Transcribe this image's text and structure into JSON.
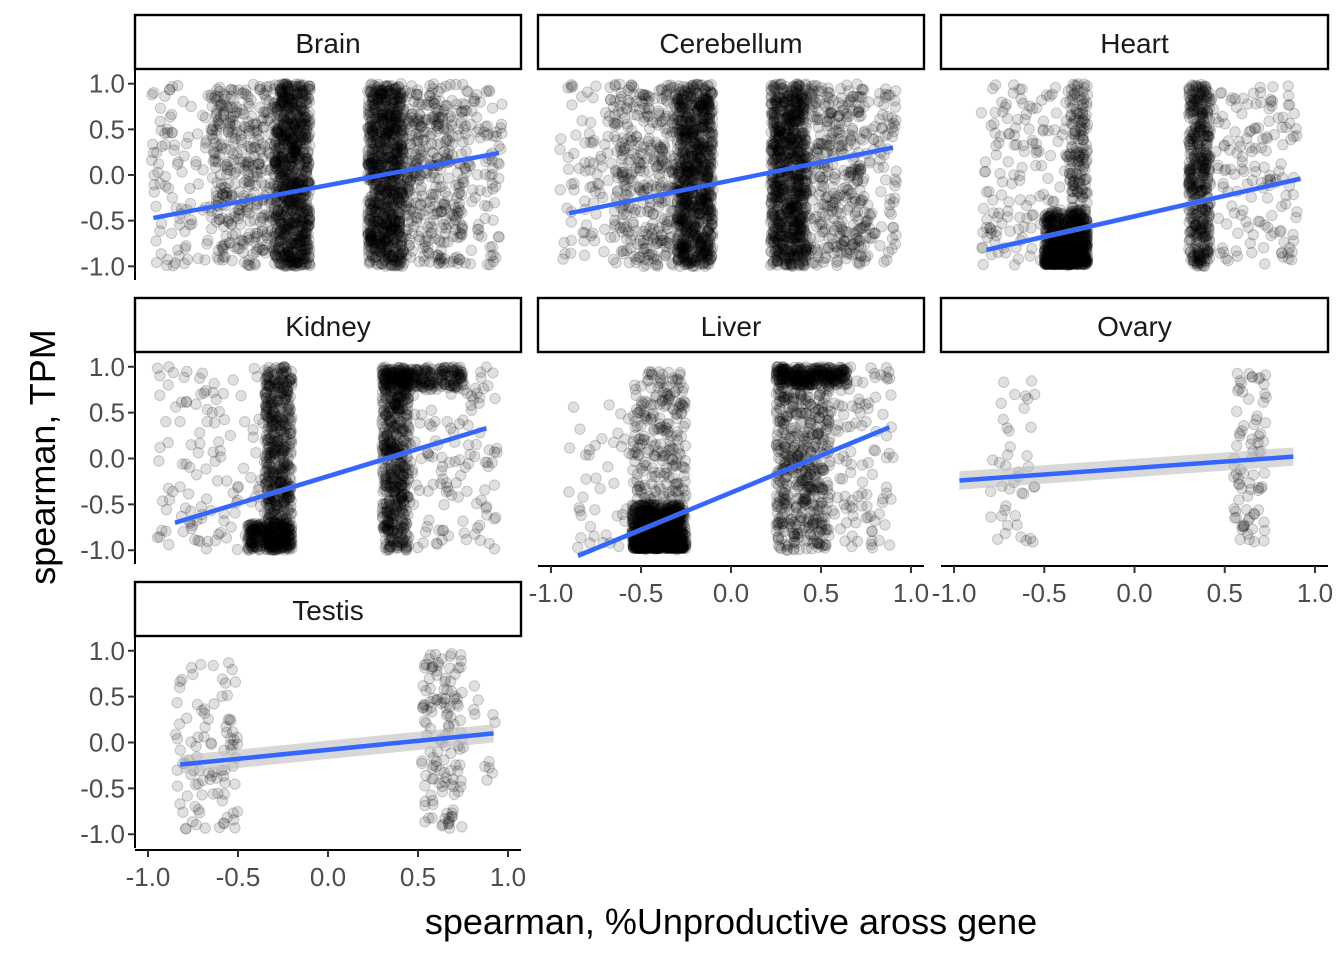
{
  "chart_data": {
    "type": "scatter",
    "subtype": "faceted scatter with linear fit and confidence band",
    "xlabel": "spearman, %Unproductive aross gene",
    "ylabel": "spearman, TPM",
    "xlim": [
      -1.05,
      1.05
    ],
    "ylim": [
      -1.15,
      1.15
    ],
    "x_ticks": [
      "-1.0",
      "-0.5",
      "0.0",
      "0.5",
      "1.0"
    ],
    "y_ticks": [
      "-1.0",
      "-0.5",
      "0.0",
      "0.5",
      "1.0"
    ],
    "x_tick_values": [
      -1.0,
      -0.5,
      0.0,
      0.5,
      1.0
    ],
    "y_tick_values": [
      -1.0,
      -0.5,
      0.0,
      0.5,
      1.0
    ],
    "grid": false,
    "point_color": "#000000",
    "point_alpha": 0.12,
    "fit_color": "#3366ff",
    "band_color": "#bebebe",
    "panels": [
      {
        "name": "Brain",
        "fit": {
          "x0": -0.97,
          "y0": -0.47,
          "x1": 0.95,
          "y1": 0.24,
          "se": 0.02
        },
        "clusters": [
          {
            "xr": [
              -0.3,
              -0.1
            ],
            "yr": [
              -1.0,
              1.0
            ],
            "n": 900,
            "dist": "uniform"
          },
          {
            "xr": [
              -0.65,
              -0.3
            ],
            "yr": [
              -1.0,
              1.0
            ],
            "n": 350,
            "dist": "uniform"
          },
          {
            "xr": [
              -0.98,
              -0.65
            ],
            "yr": [
              -1.0,
              1.0
            ],
            "n": 90,
            "dist": "uniform"
          },
          {
            "xr": [
              0.22,
              0.42
            ],
            "yr": [
              -1.0,
              1.0
            ],
            "n": 900,
            "dist": "uniform"
          },
          {
            "xr": [
              0.42,
              0.75
            ],
            "yr": [
              -1.0,
              1.0
            ],
            "n": 350,
            "dist": "uniform"
          },
          {
            "xr": [
              0.75,
              0.97
            ],
            "yr": [
              -1.0,
              1.0
            ],
            "n": 90,
            "dist": "uniform"
          }
        ]
      },
      {
        "name": "Cerebellum",
        "fit": {
          "x0": -0.9,
          "y0": -0.42,
          "x1": 0.9,
          "y1": 0.3,
          "se": 0.02
        },
        "clusters": [
          {
            "xr": [
              -0.3,
              -0.1
            ],
            "yr": [
              -1.0,
              1.0
            ],
            "n": 900,
            "dist": "uniform"
          },
          {
            "xr": [
              -0.65,
              -0.3
            ],
            "yr": [
              -1.0,
              1.0
            ],
            "n": 350,
            "dist": "uniform"
          },
          {
            "xr": [
              -0.95,
              -0.65
            ],
            "yr": [
              -1.0,
              1.0
            ],
            "n": 80,
            "dist": "uniform"
          },
          {
            "xr": [
              0.22,
              0.42
            ],
            "yr": [
              -1.0,
              1.0
            ],
            "n": 900,
            "dist": "uniform"
          },
          {
            "xr": [
              0.42,
              0.75
            ],
            "yr": [
              -1.0,
              1.0
            ],
            "n": 350,
            "dist": "uniform"
          },
          {
            "xr": [
              0.75,
              0.92
            ],
            "yr": [
              -1.0,
              1.0
            ],
            "n": 80,
            "dist": "uniform"
          }
        ]
      },
      {
        "name": "Heart",
        "fit": {
          "x0": -0.82,
          "y0": -0.82,
          "x1": 0.92,
          "y1": -0.04,
          "se": 0.03
        },
        "clusters": [
          {
            "xr": [
              -0.5,
              -0.26
            ],
            "yr": [
              -0.98,
              -0.4
            ],
            "n": 700,
            "dist": "low"
          },
          {
            "xr": [
              -0.36,
              -0.26
            ],
            "yr": [
              -1.0,
              1.0
            ],
            "n": 200,
            "dist": "uniform"
          },
          {
            "xr": [
              -0.85,
              -0.26
            ],
            "yr": [
              -1.0,
              1.0
            ],
            "n": 170,
            "dist": "uniform"
          },
          {
            "xr": [
              0.3,
              0.42
            ],
            "yr": [
              -1.0,
              1.0
            ],
            "n": 450,
            "dist": "uniform"
          },
          {
            "xr": [
              0.42,
              0.9
            ],
            "yr": [
              -1.0,
              1.0
            ],
            "n": 150,
            "dist": "uniform"
          }
        ]
      },
      {
        "name": "Kidney",
        "fit": {
          "x0": -0.85,
          "y0": -0.7,
          "x1": 0.88,
          "y1": 0.33,
          "se": 0.03
        },
        "clusters": [
          {
            "xr": [
              -0.35,
              -0.2
            ],
            "yr": [
              -1.0,
              1.0
            ],
            "n": 550,
            "dist": "uniform"
          },
          {
            "xr": [
              -0.45,
              -0.2
            ],
            "yr": [
              -1.0,
              -0.7
            ],
            "n": 250,
            "dist": "uniform"
          },
          {
            "xr": [
              -0.95,
              -0.35
            ],
            "yr": [
              -1.0,
              1.0
            ],
            "n": 120,
            "dist": "uniform"
          },
          {
            "xr": [
              0.3,
              0.45
            ],
            "yr": [
              -1.0,
              1.0
            ],
            "n": 550,
            "dist": "uniform"
          },
          {
            "xr": [
              0.3,
              0.75
            ],
            "yr": [
              0.75,
              1.0
            ],
            "n": 250,
            "dist": "uniform"
          },
          {
            "xr": [
              0.45,
              0.95
            ],
            "yr": [
              -1.0,
              1.0
            ],
            "n": 120,
            "dist": "uniform"
          }
        ]
      },
      {
        "name": "Liver",
        "fit": {
          "x0": -0.85,
          "y0": -1.06,
          "x1": 0.88,
          "y1": 0.34,
          "se": 0.03
        },
        "clusters": [
          {
            "xr": [
              -0.55,
              -0.25
            ],
            "yr": [
              -0.98,
              -0.5
            ],
            "n": 900,
            "dist": "low"
          },
          {
            "xr": [
              -0.55,
              -0.25
            ],
            "yr": [
              -1.0,
              0.95
            ],
            "n": 250,
            "dist": "uniform"
          },
          {
            "xr": [
              -0.9,
              -0.25
            ],
            "yr": [
              -1.0,
              0.7
            ],
            "n": 80,
            "dist": "uniform"
          },
          {
            "xr": [
              0.25,
              0.55
            ],
            "yr": [
              -1.0,
              1.0
            ],
            "n": 550,
            "dist": "uniform"
          },
          {
            "xr": [
              0.25,
              0.65
            ],
            "yr": [
              0.8,
              1.0
            ],
            "n": 250,
            "dist": "uniform"
          },
          {
            "xr": [
              0.55,
              0.9
            ],
            "yr": [
              -1.0,
              1.0
            ],
            "n": 100,
            "dist": "uniform"
          }
        ]
      },
      {
        "name": "Ovary",
        "fit": {
          "x0": -0.97,
          "y0": -0.24,
          "x1": 0.88,
          "y1": 0.02,
          "se": 0.1
        },
        "clusters": [
          {
            "xr": [
              -0.8,
              -0.55
            ],
            "yr": [
              -0.92,
              0.85
            ],
            "n": 42,
            "dist": "uniform"
          },
          {
            "xr": [
              0.55,
              0.73
            ],
            "yr": [
              -0.92,
              0.95
            ],
            "n": 80,
            "dist": "uniform"
          }
        ]
      },
      {
        "name": "Testis",
        "fit": {
          "x0": -0.82,
          "y0": -0.24,
          "x1": 0.92,
          "y1": 0.1,
          "se": 0.1
        },
        "clusters": [
          {
            "xr": [
              -0.85,
              -0.5
            ],
            "yr": [
              -0.95,
              0.9
            ],
            "n": 95,
            "dist": "uniform"
          },
          {
            "xr": [
              0.52,
              0.75
            ],
            "yr": [
              -0.95,
              0.98
            ],
            "n": 130,
            "dist": "uniform"
          },
          {
            "xr": [
              0.75,
              0.95
            ],
            "yr": [
              -0.6,
              0.8
            ],
            "n": 12,
            "dist": "uniform"
          }
        ]
      }
    ]
  }
}
